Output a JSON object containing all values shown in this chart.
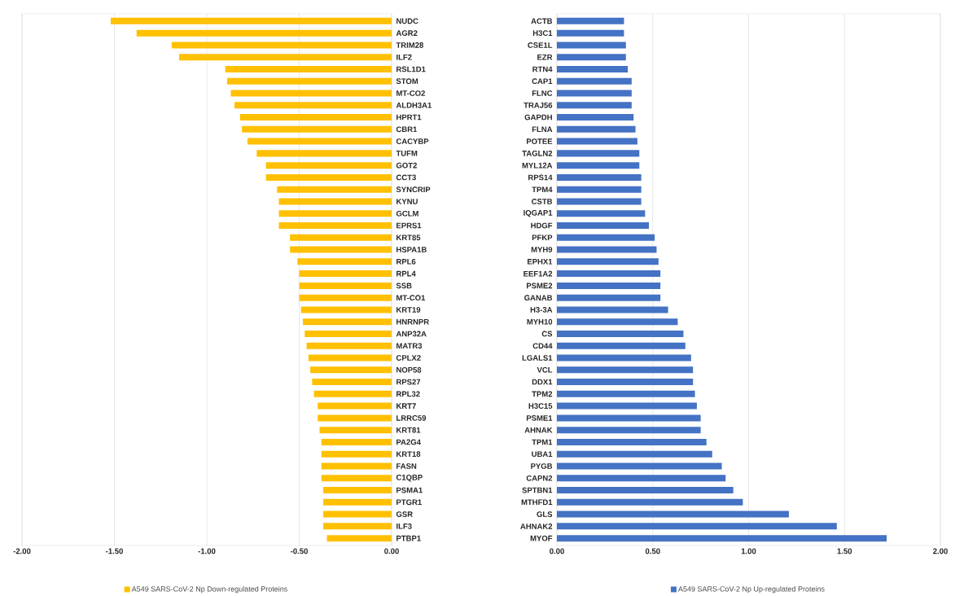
{
  "chart_data": [
    {
      "type": "bar",
      "orientation": "horizontal",
      "grid": "x",
      "legend": "bottom",
      "categories": [
        "NUDC",
        "AGR2",
        "TRIM28",
        "ILF2",
        "RSL1D1",
        "STOM",
        "MT-CO2",
        "ALDH3A1",
        "HPRT1",
        "CBR1",
        "CACYBP",
        "TUFM",
        "GOT2",
        "CCT3",
        "SYNCRIP",
        "KYNU",
        "GCLM",
        "EPRS1",
        "KRT85",
        "HSPA1B",
        "RPL6",
        "RPL4",
        "SSB",
        "MT-CO1",
        "KRT19",
        "HNRNPR",
        "ANP32A",
        "MATR3",
        "CPLX2",
        "NOP58",
        "RPS27",
        "RPL32",
        "KRT7",
        "LRRC59",
        "KRT81",
        "PA2G4",
        "KRT18",
        "FASN",
        "C1QBP",
        "PSMA1",
        "PTGR1",
        "GSR",
        "ILF3",
        "PTBP1"
      ],
      "series": [
        {
          "name": "A549 SARS-CoV-2 Np Down-regulated Proteins",
          "color": "#ffc000",
          "values": [
            -1.52,
            -1.38,
            -1.19,
            -1.15,
            -0.9,
            -0.89,
            -0.87,
            -0.85,
            -0.82,
            -0.81,
            -0.78,
            -0.73,
            -0.68,
            -0.68,
            -0.62,
            -0.61,
            -0.61,
            -0.61,
            -0.55,
            -0.55,
            -0.51,
            -0.5,
            -0.5,
            -0.5,
            -0.49,
            -0.48,
            -0.47,
            -0.46,
            -0.45,
            -0.44,
            -0.43,
            -0.42,
            -0.4,
            -0.4,
            -0.39,
            -0.38,
            -0.38,
            -0.38,
            -0.38,
            -0.37,
            -0.37,
            -0.37,
            -0.37,
            -0.35
          ]
        }
      ],
      "xlim": [
        -2,
        0
      ],
      "xticks": [
        {
          "value": -2,
          "label": "-2.00"
        },
        {
          "value": -1.5,
          "label": "-1.50"
        },
        {
          "value": -1,
          "label": "-1.00"
        },
        {
          "value": -0.5,
          "label": "-0.50"
        },
        {
          "value": 0,
          "label": "0.00"
        }
      ]
    },
    {
      "type": "bar",
      "orientation": "horizontal",
      "grid": "x",
      "legend": "bottom",
      "categories": [
        "ACTB",
        "H3C1",
        "CSE1L",
        "EZR",
        "RTN4",
        "CAP1",
        "FLNC",
        "TRAJ56",
        "GAPDH",
        "FLNA",
        "POTEE",
        "TAGLN2",
        "MYL12A",
        "RPS14",
        "TPM4",
        "CSTB",
        "IQGAP1",
        "HDGF",
        "PFKP",
        "MYH9",
        "EPHX1",
        "EEF1A2",
        "PSME2",
        "GANAB",
        "H3-3A",
        "MYH10",
        "CS",
        "CD44",
        "LGALS1",
        "VCL",
        "DDX1",
        "TPM2",
        "H3C15",
        "PSME1",
        "AHNAK",
        "TPM1",
        "UBA1",
        "PYGB",
        "CAPN2",
        "SPTBN1",
        "MTHFD1",
        "GLS",
        "AHNAK2",
        "MYOF"
      ],
      "series": [
        {
          "name": "A549 SARS-CoV-2 Np Up-regulated Proteins",
          "color": "#4472c4",
          "values": [
            0.35,
            0.35,
            0.36,
            0.36,
            0.37,
            0.39,
            0.39,
            0.39,
            0.4,
            0.41,
            0.42,
            0.43,
            0.43,
            0.44,
            0.44,
            0.44,
            0.46,
            0.48,
            0.51,
            0.52,
            0.53,
            0.54,
            0.54,
            0.54,
            0.58,
            0.63,
            0.66,
            0.67,
            0.7,
            0.71,
            0.71,
            0.72,
            0.73,
            0.75,
            0.75,
            0.78,
            0.81,
            0.86,
            0.88,
            0.92,
            0.97,
            1.21,
            1.46,
            1.72
          ]
        }
      ],
      "xlim": [
        0,
        2
      ],
      "xticks": [
        {
          "value": 0,
          "label": "0.00"
        },
        {
          "value": 0.5,
          "label": "0.50"
        },
        {
          "value": 1,
          "label": "1.00"
        },
        {
          "value": 1.5,
          "label": "1.50"
        },
        {
          "value": 2,
          "label": "2.00"
        }
      ]
    }
  ]
}
